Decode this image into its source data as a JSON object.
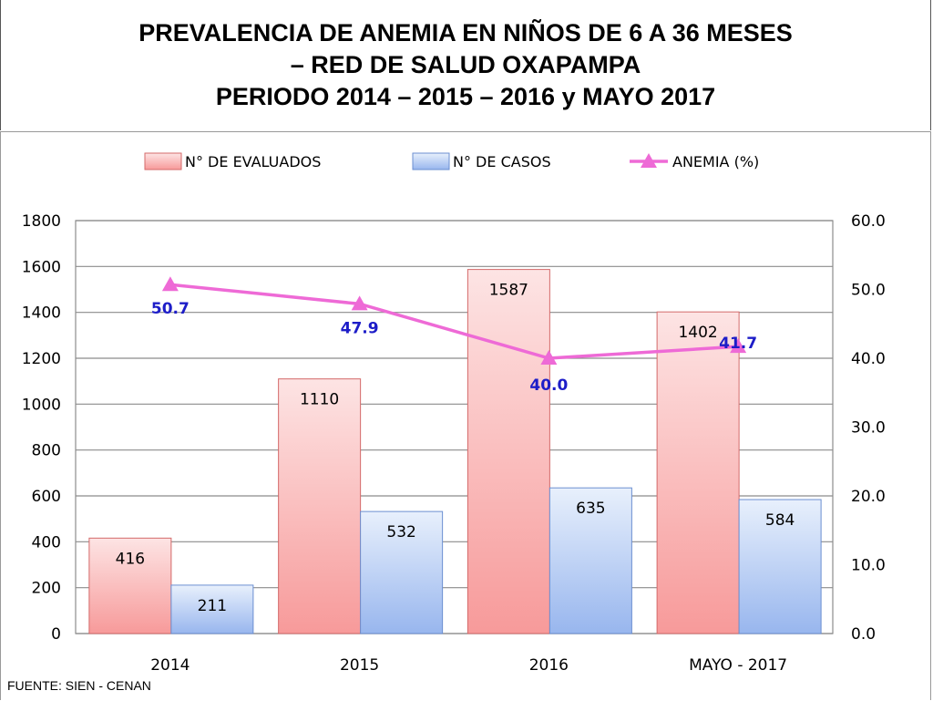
{
  "title": {
    "line1": "PREVALENCIA DE ANEMIA EN NIÑOS DE 6 A 36 MESES",
    "line2": "– RED DE  SALUD OXAPAMPA",
    "line3": "PERIODO 2014 – 2015 – 2016 y MAYO 2017"
  },
  "source": "FUENTE: SIEN - CENAN",
  "colors": {
    "evaluados_top": "#fde4e4",
    "evaluados_bottom": "#f79a9a",
    "casos_top": "#e8f0fc",
    "casos_bottom": "#98b6ee",
    "anemia_line": "#ee6ad6",
    "anemia_label": "#1d1dc8",
    "grid": "#8c8c8c"
  },
  "chart_data": {
    "type": "bar",
    "categories": [
      "2014",
      "2015",
      "2016",
      "MAYO - 2017"
    ],
    "series": [
      {
        "name": "N° DE  EVALUADOS",
        "type": "bar",
        "axis": "left",
        "values": [
          416,
          1110,
          1587,
          1402
        ],
        "labels": [
          "416",
          "1110",
          "1587",
          "1402"
        ]
      },
      {
        "name": "N° DE CASOS",
        "type": "bar",
        "axis": "left",
        "values": [
          211,
          532,
          635,
          584
        ],
        "labels": [
          "211",
          "532",
          "635",
          "584"
        ]
      },
      {
        "name": "ANEMIA (%)",
        "type": "line",
        "axis": "right",
        "marker": "triangle",
        "values": [
          50.7,
          47.9,
          40.0,
          41.7
        ],
        "labels": [
          "50.7",
          "47.9",
          "40.0",
          "41.7"
        ]
      }
    ],
    "y_left": {
      "min": 0,
      "max": 1800,
      "ticks": [
        "0",
        "200",
        "400",
        "600",
        "800",
        "1000",
        "1200",
        "1400",
        "1600",
        "1800"
      ]
    },
    "y_right": {
      "min": 0,
      "max": 60,
      "ticks": [
        "0.0",
        "10.0",
        "20.0",
        "30.0",
        "40.0",
        "50.0",
        "60.0"
      ]
    },
    "grid": true,
    "legend": "top"
  }
}
